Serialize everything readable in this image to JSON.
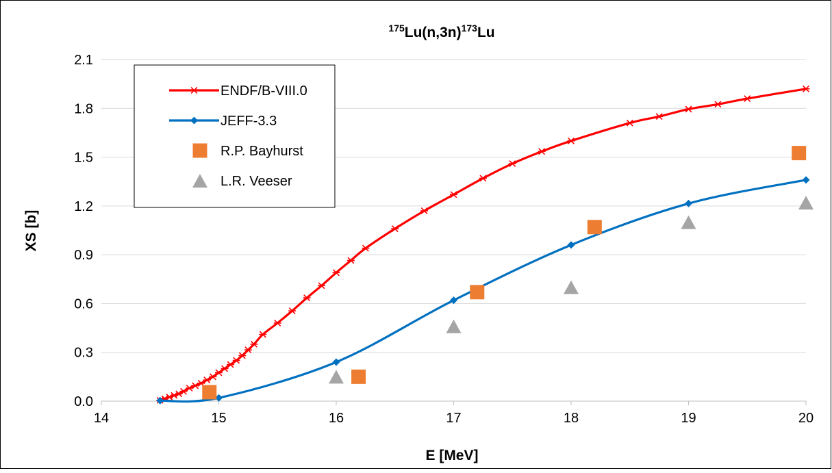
{
  "chart_data": {
    "type": "line",
    "title": {
      "pre_super": "175",
      "main1": "Lu(n,3n)",
      "mid_super": "173",
      "main2": "Lu"
    },
    "xlabel": "E [MeV]",
    "ylabel": "XS [b]",
    "xlim": [
      14,
      20
    ],
    "ylim": [
      0,
      2.1
    ],
    "x_ticks": [
      14,
      15,
      16,
      17,
      18,
      19,
      20
    ],
    "y_ticks": [
      0.0,
      0.3,
      0.6,
      0.9,
      1.2,
      1.5,
      1.8,
      2.1
    ],
    "x_tick_labels": [
      "14",
      "15",
      "16",
      "17",
      "18",
      "19",
      "20"
    ],
    "y_tick_labels": [
      "0.0",
      "0.3",
      "0.6",
      "0.9",
      "1.2",
      "1.5",
      "1.8",
      "2.1"
    ],
    "grid": "horizontal",
    "legend_position": "top-left",
    "series": [
      {
        "name": "ENDF/B-VIII.0",
        "kind": "line",
        "marker": "asterisk",
        "color": "#ff0000",
        "x": [
          14.5,
          14.54,
          14.58,
          14.62,
          14.66,
          14.7,
          14.75,
          14.8,
          14.85,
          14.9,
          14.95,
          15.0,
          15.05,
          15.1,
          15.15,
          15.2,
          15.25,
          15.3,
          15.375,
          15.5,
          15.625,
          15.75,
          15.875,
          16.0,
          16.125,
          16.25,
          16.5,
          16.75,
          17.0,
          17.25,
          17.5,
          17.75,
          18.0,
          18.5,
          18.75,
          19.0,
          19.25,
          19.5,
          20.0
        ],
        "y": [
          0.005,
          0.015,
          0.025,
          0.035,
          0.045,
          0.06,
          0.08,
          0.095,
          0.11,
          0.13,
          0.15,
          0.175,
          0.2,
          0.225,
          0.25,
          0.28,
          0.315,
          0.35,
          0.41,
          0.48,
          0.555,
          0.635,
          0.71,
          0.79,
          0.865,
          0.94,
          1.06,
          1.17,
          1.27,
          1.37,
          1.46,
          1.535,
          1.6,
          1.71,
          1.75,
          1.795,
          1.825,
          1.86,
          1.92
        ]
      },
      {
        "name": "JEFF-3.3",
        "kind": "line",
        "marker": "diamond",
        "color": "#0070c0",
        "x": [
          14.5,
          15.0,
          16.0,
          17.0,
          18.0,
          19.0,
          20.0
        ],
        "y": [
          0.003,
          0.02,
          0.24,
          0.62,
          0.96,
          1.215,
          1.36
        ]
      },
      {
        "name": "R.P. Bayhurst",
        "kind": "scatter",
        "marker": "square",
        "color": "#ed7d31",
        "x": [
          14.92,
          16.19,
          17.2,
          18.2,
          19.94
        ],
        "y": [
          0.055,
          0.15,
          0.67,
          1.07,
          1.525
        ]
      },
      {
        "name": "L.R. Veeser",
        "kind": "scatter",
        "marker": "triangle",
        "color": "#a5a5a5",
        "x": [
          16.0,
          17.0,
          18.0,
          19.0,
          20.0
        ],
        "y": [
          0.15,
          0.46,
          0.7,
          1.1,
          1.22
        ]
      }
    ]
  }
}
